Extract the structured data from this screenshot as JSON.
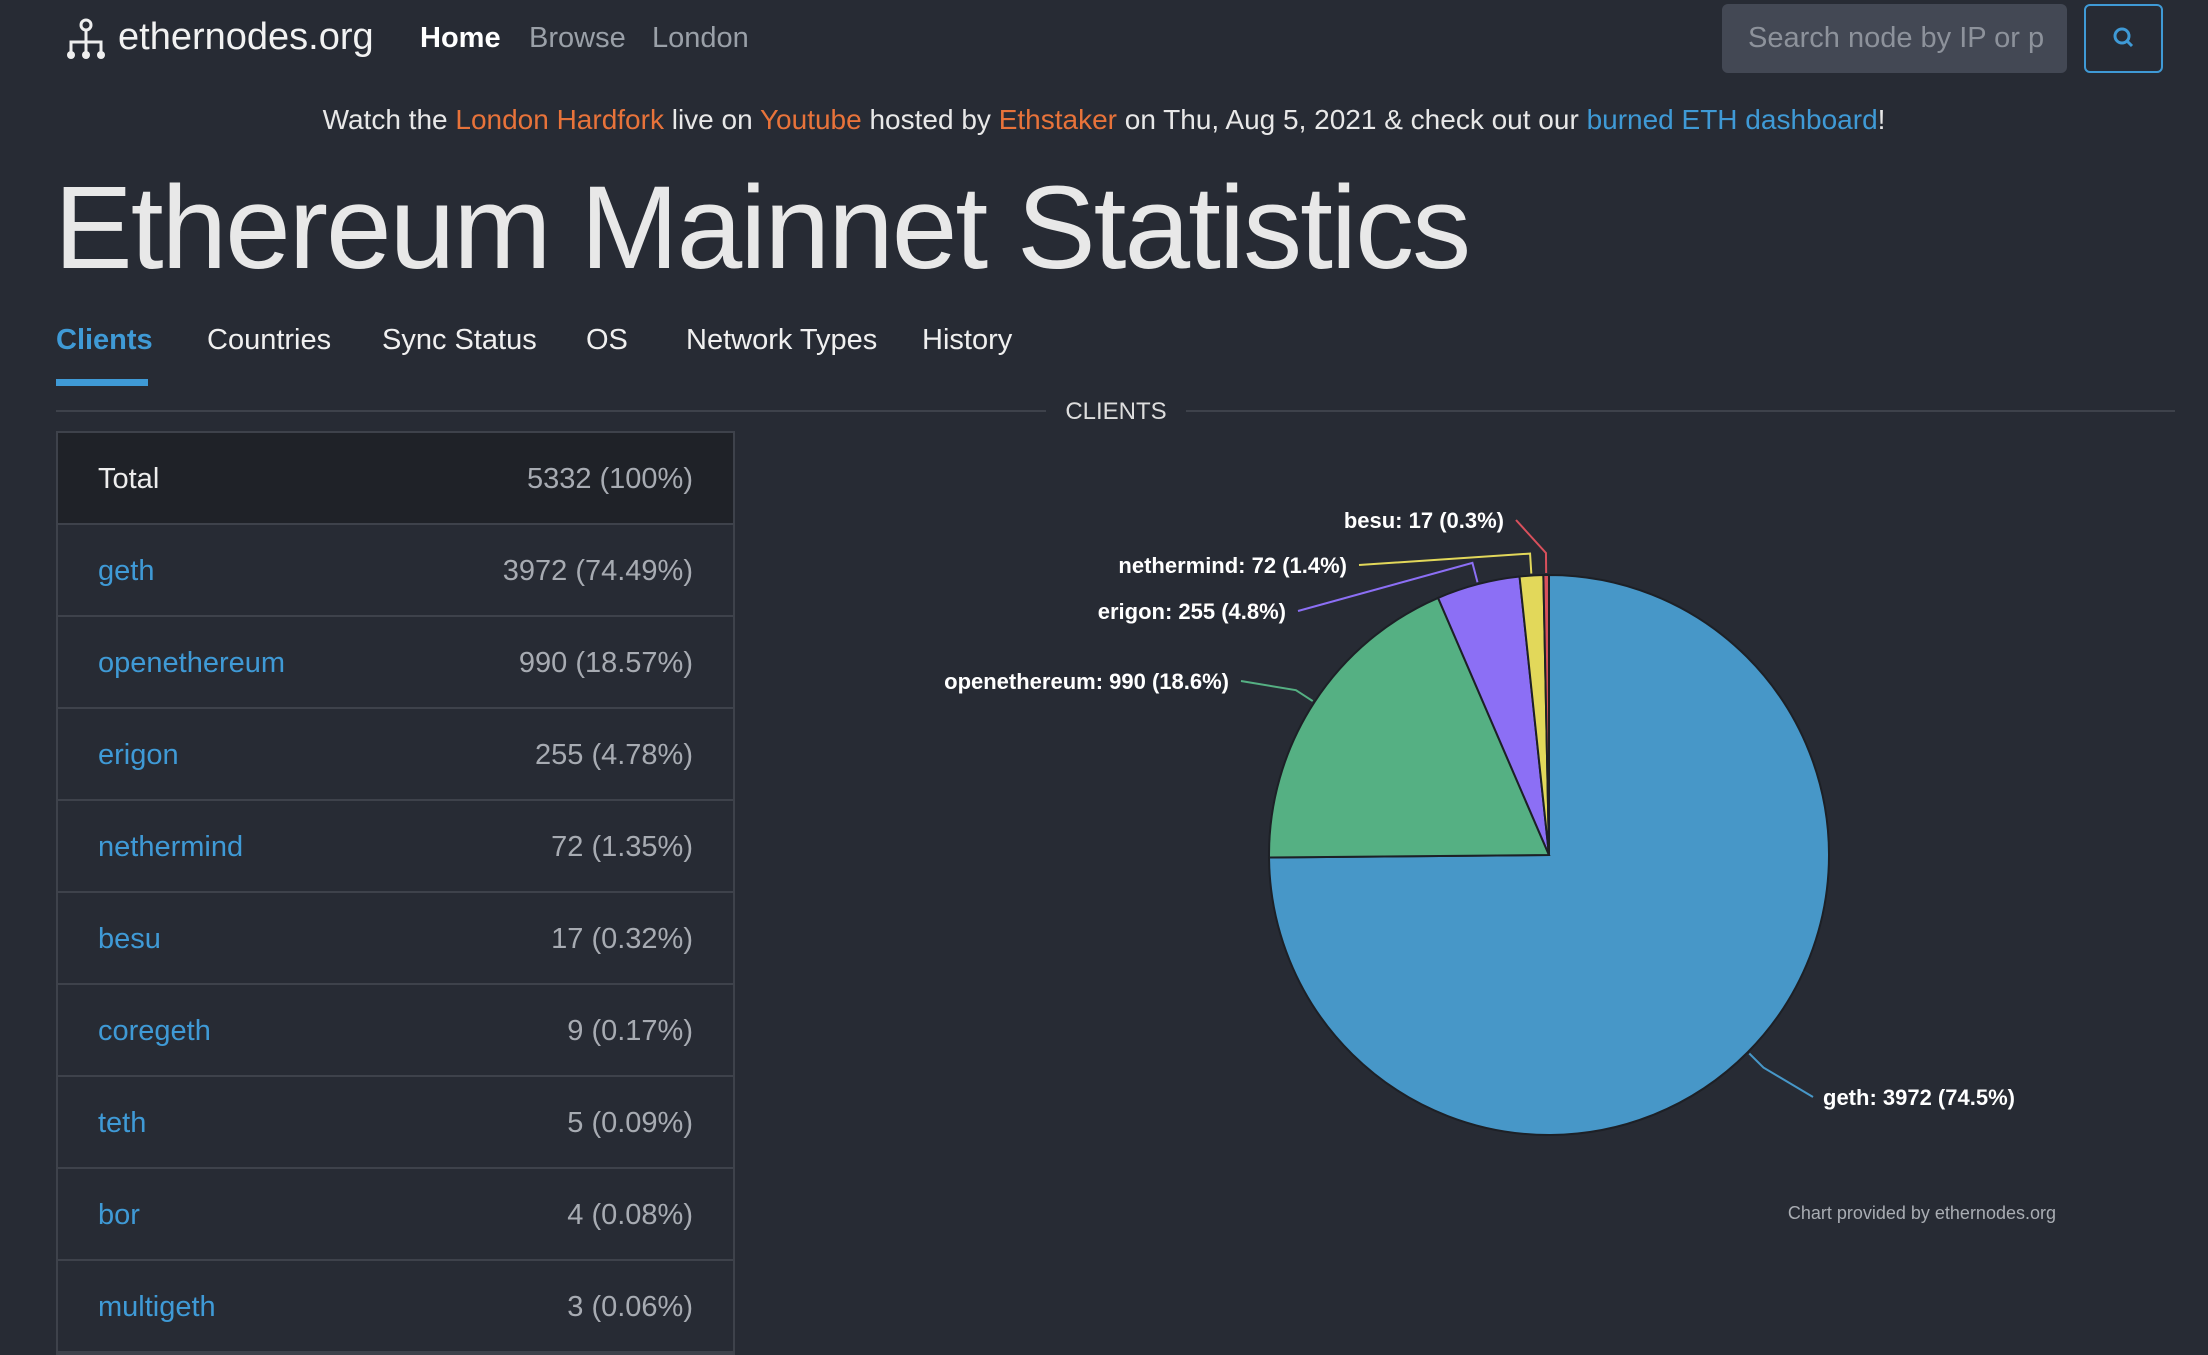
{
  "nav": {
    "brand": "ethernodes.org",
    "links": [
      "Home",
      "Browse",
      "London"
    ],
    "search_placeholder": "Search node by IP or p"
  },
  "banner": {
    "parts": [
      {
        "text": "Watch the "
      },
      {
        "text": "London Hardfork",
        "color": "#e8733a"
      },
      {
        "text": " live on "
      },
      {
        "text": "Youtube",
        "color": "#e8733a"
      },
      {
        "text": " hosted by "
      },
      {
        "text": "Ethstaker",
        "color": "#e8733a"
      },
      {
        "text": " on Thu, Aug 5, 2021 & check out our "
      },
      {
        "text": "burned ETH dashboard",
        "color": "#3f9ad6"
      },
      {
        "text": "!"
      }
    ]
  },
  "title": "Ethereum Mainnet Statistics",
  "tabs": [
    "Clients",
    "Countries",
    "Sync Status",
    "OS",
    "Network Types",
    "History"
  ],
  "table": {
    "rows": [
      [
        "Total",
        "5332 (100%)"
      ],
      [
        "geth",
        "3972 (74.49%)"
      ],
      [
        "openethereum",
        "990 (18.57%)"
      ],
      [
        "erigon",
        "255 (4.78%)"
      ],
      [
        "nethermind",
        "72 (1.35%)"
      ],
      [
        "besu",
        "17 (0.32%)"
      ],
      [
        "coregeth",
        "9 (0.17%)"
      ],
      [
        "teth",
        "5 (0.09%)"
      ],
      [
        "bor",
        "4 (0.08%)"
      ],
      [
        "multigeth",
        "3 (0.06%)"
      ]
    ]
  },
  "chart_data": {
    "type": "pie",
    "title": "CLIENTS",
    "values": [
      3972,
      990,
      255,
      72,
      17
    ],
    "value_labels": [
      "geth: 3972 (74.5%)",
      "openethereum: 990 (18.6%)",
      "erigon: 255 (4.8%)",
      "nethermind: 72 (1.4%)",
      "besu: 17 (0.3%)"
    ],
    "colors": [
      "#4797c8",
      "#55b083",
      "#8c6ff5",
      "#e2d85a",
      "#d9505c"
    ],
    "credit": "Chart provided by ethernodes.org"
  }
}
